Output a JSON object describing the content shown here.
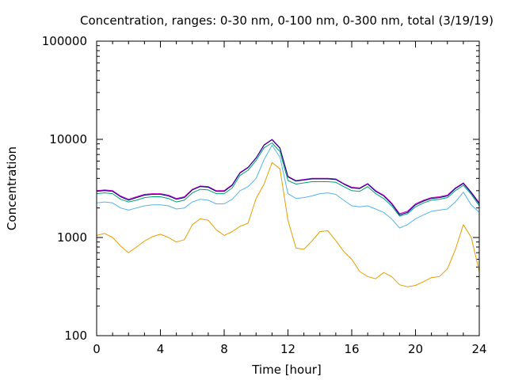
{
  "chart_data": {
    "type": "line",
    "title": "Concentration, ranges: 0-30 nm, 0-100 nm, 0-300 nm, total (3/19/19)",
    "xlabel": "Time [hour]",
    "ylabel": "Concentration",
    "xlim": [
      0,
      24
    ],
    "ylim": [
      100,
      100000
    ],
    "y_scale": "log",
    "grid": false,
    "legend": "none",
    "x_ticks": [
      "0",
      "4",
      "8",
      "12",
      "16",
      "20",
      "24"
    ],
    "y_ticks": [
      "100",
      "1000",
      "10000",
      "100000"
    ],
    "x": [
      0,
      0.5,
      1,
      1.5,
      2,
      2.5,
      3,
      3.5,
      4,
      4.5,
      5,
      5.5,
      6,
      6.5,
      7,
      7.5,
      8,
      8.5,
      9,
      9.5,
      10,
      10.5,
      11,
      11.5,
      12,
      12.5,
      13,
      13.5,
      14,
      14.5,
      15,
      15.5,
      16,
      16.5,
      17,
      17.5,
      18,
      18.5,
      19,
      19.5,
      20,
      20.5,
      21,
      21.5,
      22,
      22.5,
      23,
      23.5,
      24
    ],
    "series": [
      {
        "color": "#cc00cc",
        "values": [
          3000,
          3050,
          3000,
          2650,
          2450,
          2600,
          2750,
          2800,
          2800,
          2700,
          2500,
          2600,
          3100,
          3350,
          3300,
          3000,
          3000,
          3450,
          4600,
          5200,
          6500,
          8800,
          10000,
          8200,
          4200,
          3800,
          3900,
          4000,
          4000,
          4000,
          3950,
          3550,
          3250,
          3200,
          3550,
          3000,
          2700,
          2250,
          1750,
          1850,
          2200,
          2400,
          2550,
          2600,
          2700,
          3200,
          3600,
          2900,
          2250
        ]
      },
      {
        "color": "#000080",
        "values": [
          2950,
          3000,
          2950,
          2600,
          2400,
          2550,
          2700,
          2750,
          2750,
          2650,
          2450,
          2550,
          3050,
          3300,
          3250,
          2950,
          2950,
          3400,
          4550,
          5150,
          6450,
          8700,
          9900,
          8100,
          4150,
          3750,
          3850,
          3950,
          3950,
          3950,
          3900,
          3500,
          3200,
          3150,
          3500,
          2950,
          2650,
          2200,
          1700,
          1800,
          2150,
          2350,
          2500,
          2550,
          2650,
          3150,
          3550,
          2850,
          2200
        ]
      },
      {
        "color": "#009e73",
        "values": [
          2800,
          2850,
          2800,
          2450,
          2300,
          2400,
          2550,
          2600,
          2600,
          2500,
          2300,
          2400,
          2850,
          3100,
          3050,
          2800,
          2800,
          3200,
          4300,
          4850,
          6100,
          8200,
          9200,
          7500,
          3800,
          3500,
          3600,
          3700,
          3700,
          3700,
          3650,
          3300,
          3000,
          2950,
          3300,
          2800,
          2500,
          2100,
          1650,
          1750,
          2050,
          2250,
          2400,
          2450,
          2550,
          3000,
          3400,
          2750,
          2100
        ]
      },
      {
        "color": "#56b4e9",
        "values": [
          2250,
          2300,
          2250,
          2000,
          1900,
          2000,
          2100,
          2150,
          2150,
          2100,
          1950,
          2000,
          2300,
          2450,
          2400,
          2200,
          2200,
          2450,
          3000,
          3300,
          4000,
          6200,
          8700,
          6600,
          2800,
          2500,
          2550,
          2650,
          2800,
          2850,
          2750,
          2400,
          2100,
          2050,
          2100,
          1950,
          1800,
          1550,
          1250,
          1350,
          1550,
          1700,
          1850,
          1900,
          1950,
          2300,
          2900,
          2150,
          1800
        ]
      },
      {
        "color": "#e69f00",
        "values": [
          1050,
          1100,
          1000,
          820,
          700,
          800,
          920,
          1020,
          1080,
          1000,
          900,
          950,
          1350,
          1550,
          1500,
          1200,
          1050,
          1150,
          1300,
          1400,
          2500,
          3500,
          5800,
          5000,
          1500,
          780,
          760,
          920,
          1150,
          1170,
          930,
          720,
          600,
          450,
          400,
          380,
          440,
          400,
          330,
          315,
          325,
          355,
          390,
          400,
          480,
          750,
          1350,
          1000,
          450
        ]
      }
    ]
  }
}
